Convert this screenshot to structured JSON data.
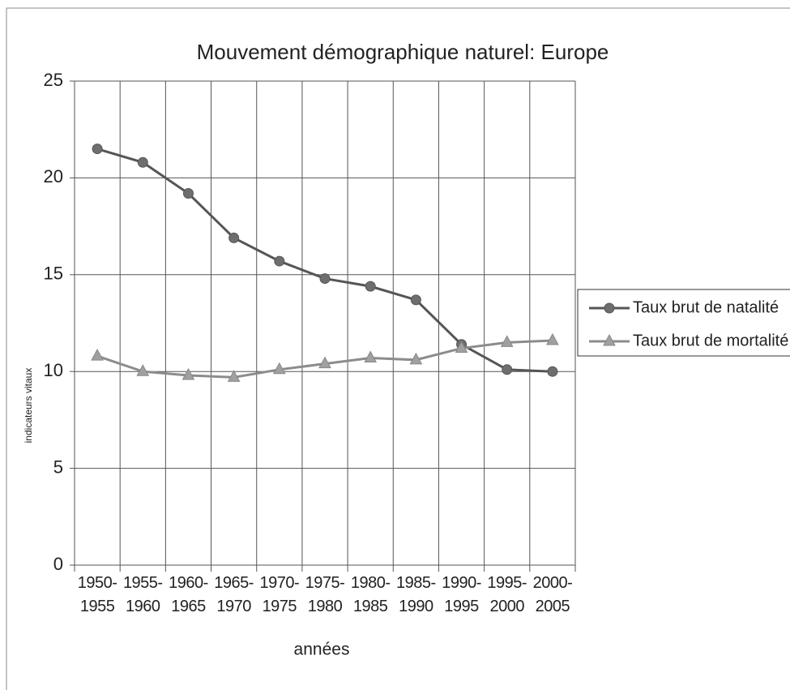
{
  "chart_data": {
    "type": "line",
    "title": "Mouvement démographique naturel: Europe",
    "x_label": "années",
    "y_label": "indicateurs vitaux",
    "categories": [
      "1950-1955",
      "1955-1960",
      "1960-1965",
      "1965-1970",
      "1970-1975",
      "1975-1980",
      "1980-1985",
      "1985-1990",
      "1990-1995",
      "1995-2000",
      "2000-2005"
    ],
    "series": [
      {
        "name": "Taux brut de natalité",
        "color": "#555555",
        "marker": "circle",
        "values": [
          21.5,
          20.8,
          19.2,
          16.9,
          15.7,
          14.8,
          14.4,
          13.7,
          11.4,
          10.1,
          10.0
        ]
      },
      {
        "name": "Taux brut de mortalité",
        "color": "#8c8c8c",
        "marker": "triangle",
        "values": [
          10.8,
          10.0,
          9.8,
          9.7,
          10.1,
          10.4,
          10.7,
          10.6,
          11.2,
          11.5,
          11.6
        ]
      }
    ],
    "ylim": [
      0,
      25
    ],
    "yticks": [
      0,
      5,
      10,
      15,
      20,
      25
    ],
    "grid": true,
    "legend": "right"
  }
}
